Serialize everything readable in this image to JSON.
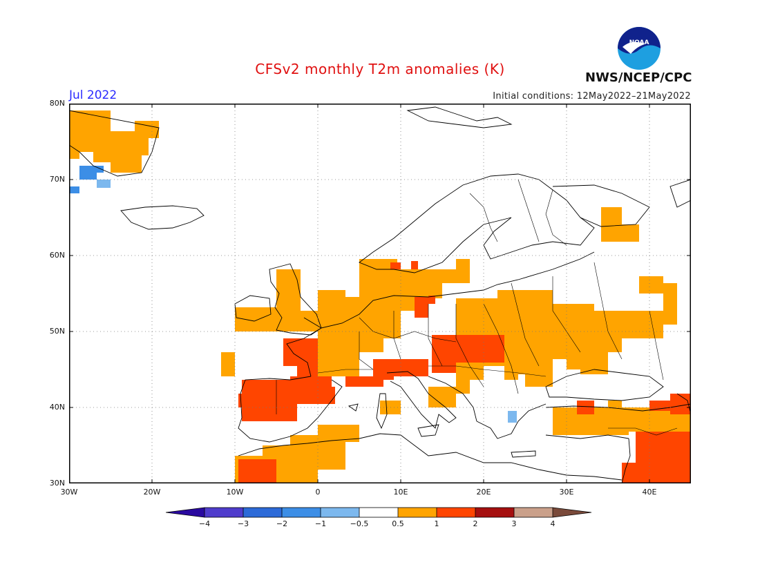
{
  "header": {
    "title": "CFSv2 monthly T2m anomalies (K)",
    "month": "Jul 2022",
    "initial_conditions": "Initial conditions: 12May2022–21May2022",
    "agency": "NWS/NCEP/CPC",
    "logo_text": "NOAA"
  },
  "axes": {
    "lat_labels": [
      "80N",
      "70N",
      "60N",
      "50N",
      "40N",
      "30N"
    ],
    "lon_labels": [
      "30W",
      "20W",
      "10W",
      "0",
      "10E",
      "20E",
      "30E",
      "40E"
    ]
  },
  "colorbar": {
    "labels": [
      "−4",
      "−3",
      "−2",
      "−1",
      "−0.5",
      "0.5",
      "1",
      "2",
      "3",
      "4"
    ],
    "colors": [
      "#2a0aa0",
      "#4f3ccc",
      "#2c6ad8",
      "#3c8ee6",
      "#7cb8ee",
      "#ffffff",
      "#ffa400",
      "#ff4500",
      "#a50f0f",
      "#caa08a",
      "#7a4a3a"
    ]
  },
  "colors": {
    "warm_0_5_1": "#ffa400",
    "warm_1_2": "#ff4500",
    "cool_m1_m0_5": "#7cb8ee",
    "cool_m2_m1": "#3c8ee6"
  }
}
